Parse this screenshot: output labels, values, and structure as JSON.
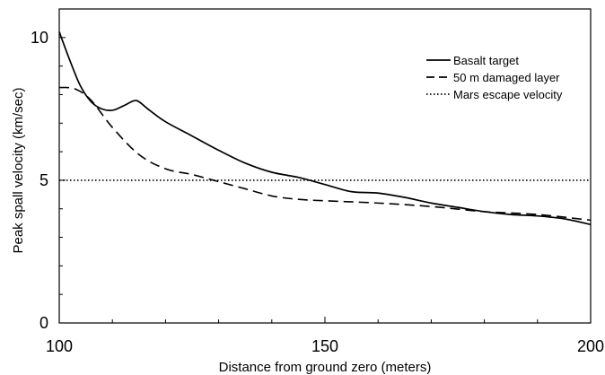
{
  "chart_data": {
    "type": "line",
    "xlabel": "Distance from ground zero (meters)",
    "ylabel": "Peak spall velocity (km/sec)",
    "xlim": [
      100,
      200
    ],
    "ylim": [
      0,
      11
    ],
    "x_ticks": [
      100,
      150,
      200
    ],
    "x_tick_labels": [
      "100",
      "150",
      "200"
    ],
    "y_ticks": [
      0,
      5,
      10
    ],
    "y_tick_labels": [
      "0",
      "5",
      "10"
    ],
    "grid": false,
    "legend_position": "top-right",
    "series": [
      {
        "name": "Basalt target",
        "style": "solid",
        "color": "#000000",
        "points": [
          [
            100,
            10.2
          ],
          [
            102,
            9.2
          ],
          [
            104,
            8.3
          ],
          [
            106,
            7.75
          ],
          [
            108,
            7.5
          ],
          [
            110,
            7.45
          ],
          [
            112,
            7.6
          ],
          [
            114,
            7.78
          ],
          [
            115,
            7.75
          ],
          [
            117,
            7.45
          ],
          [
            120,
            7.05
          ],
          [
            125,
            6.55
          ],
          [
            130,
            6.05
          ],
          [
            135,
            5.6
          ],
          [
            140,
            5.28
          ],
          [
            145,
            5.1
          ],
          [
            150,
            4.85
          ],
          [
            155,
            4.6
          ],
          [
            160,
            4.55
          ],
          [
            165,
            4.4
          ],
          [
            170,
            4.2
          ],
          [
            175,
            4.05
          ],
          [
            180,
            3.9
          ],
          [
            185,
            3.8
          ],
          [
            190,
            3.75
          ],
          [
            195,
            3.65
          ],
          [
            200,
            3.45
          ]
        ]
      },
      {
        "name": "50 m damaged layer",
        "style": "dashed",
        "color": "#000000",
        "points": [
          [
            100,
            8.25
          ],
          [
            103,
            8.2
          ],
          [
            106,
            7.8
          ],
          [
            110,
            6.85
          ],
          [
            115,
            5.9
          ],
          [
            120,
            5.4
          ],
          [
            125,
            5.2
          ],
          [
            130,
            4.95
          ],
          [
            135,
            4.7
          ],
          [
            140,
            4.45
          ],
          [
            145,
            4.33
          ],
          [
            150,
            4.28
          ],
          [
            160,
            4.2
          ],
          [
            170,
            4.08
          ],
          [
            180,
            3.9
          ],
          [
            190,
            3.8
          ],
          [
            200,
            3.6
          ]
        ]
      },
      {
        "name": "Mars escape velocity",
        "style": "dotted",
        "color": "#000000",
        "points": [
          [
            100,
            5.0
          ],
          [
            200,
            5.0
          ]
        ]
      }
    ]
  }
}
